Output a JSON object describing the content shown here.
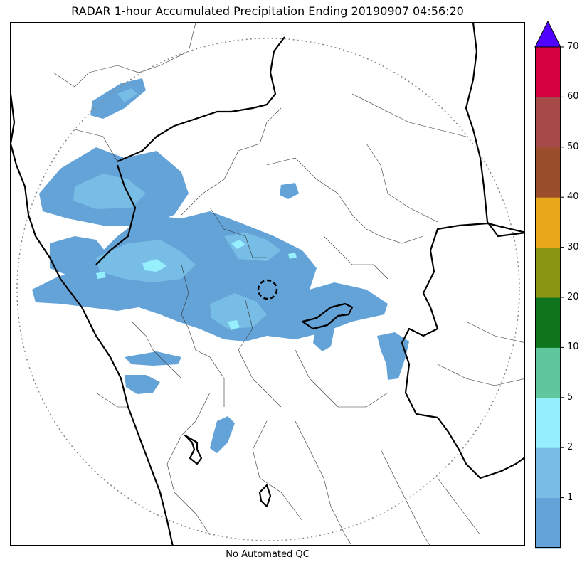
{
  "title": "RADAR 1-hour Accumulated Precipitation Ending 20190907 04:56:20",
  "footer": "No Automated QC",
  "colorbar": {
    "extend": "max",
    "extend_color": "#5000ff",
    "bins": [
      {
        "color": "#64a3d7"
      },
      {
        "color": "#77bde5"
      },
      {
        "color": "#96effc"
      },
      {
        "color": "#5fc69d"
      },
      {
        "color": "#0f751c"
      },
      {
        "color": "#8a9613"
      },
      {
        "color": "#e7a81b"
      },
      {
        "color": "#9b4e2b"
      },
      {
        "color": "#a54a46"
      },
      {
        "color": "#d5003f"
      }
    ],
    "ticks": [
      {
        "label": "1"
      },
      {
        "label": "2"
      },
      {
        "label": "5"
      },
      {
        "label": "10"
      },
      {
        "label": "20"
      },
      {
        "label": "30"
      },
      {
        "label": "40"
      },
      {
        "label": "50"
      },
      {
        "label": "60"
      },
      {
        "label": "70"
      }
    ]
  },
  "map": {
    "range_ring_color": "#888888",
    "boundary_color": "#000000",
    "radar_marker": "dashed-circle"
  }
}
